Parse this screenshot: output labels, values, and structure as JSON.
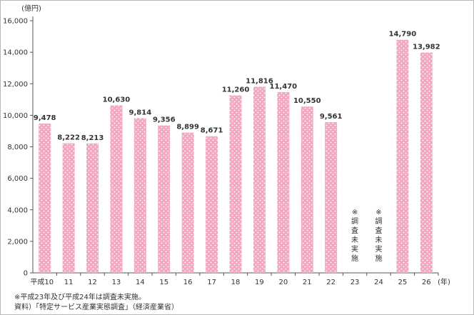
{
  "chart_data": {
    "type": "bar",
    "unit_label": "(億円)",
    "x_unit_label": "(年)",
    "ylim": [
      0,
      16000
    ],
    "y_ticks": [
      0,
      2000,
      4000,
      6000,
      8000,
      10000,
      12000,
      14000,
      16000
    ],
    "y_tick_labels": [
      "0",
      "2,000",
      "4,000",
      "6,000",
      "8,000",
      "10,000",
      "12,000",
      "14,000",
      "16,000"
    ],
    "categories": [
      "平成10",
      "11",
      "12",
      "13",
      "14",
      "15",
      "16",
      "17",
      "18",
      "19",
      "20",
      "21",
      "22",
      "23",
      "24",
      "25",
      "26"
    ],
    "values": [
      9478,
      8222,
      8213,
      10630,
      9814,
      9356,
      8899,
      8671,
      11260,
      11816,
      11470,
      10550,
      9561,
      null,
      null,
      14790,
      13982
    ],
    "value_labels": [
      "9,478",
      "8,222",
      "8,213",
      "10,630",
      "9,814",
      "9,356",
      "8,899",
      "8,671",
      "11,260",
      "11,816",
      "11,470",
      "10,550",
      "9,561",
      "",
      "",
      "14,790",
      "13,982"
    ],
    "missing_note_chars": [
      "※",
      "調",
      "査",
      "未",
      "実",
      "施"
    ],
    "bar_color": "#f2a7c3",
    "dot_color": "#ffffff",
    "grid": false
  },
  "notes": [
    "※平成23年及び平成24年は調査未実施。",
    "資料）「特定サービス産業実態調査」（経済産業省）"
  ]
}
